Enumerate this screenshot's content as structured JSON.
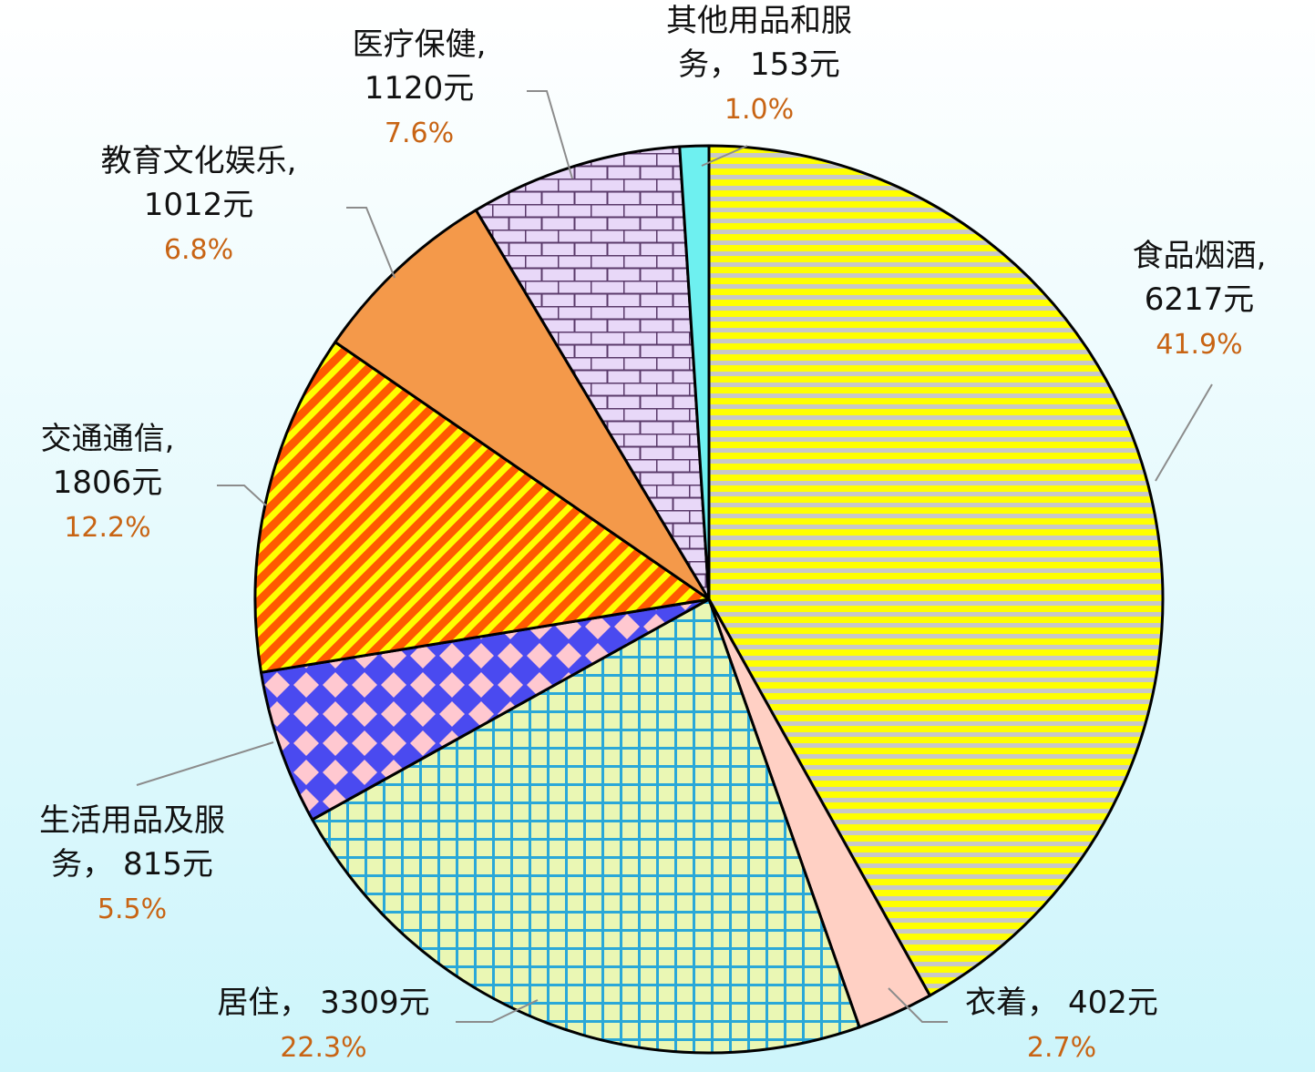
{
  "chart_data": {
    "type": "pie",
    "unit": "元",
    "slices": [
      {
        "name": "食品烟酒",
        "value": 6217,
        "percent": "41.9%",
        "label_line1": "食品烟酒,",
        "label_line2": "6217元",
        "fill": "#ffff00",
        "pattern": "horizontal-lines",
        "pattern_color": "#c8c8c8"
      },
      {
        "name": "衣着",
        "value": 402,
        "percent": "2.7%",
        "label_line1": "衣着， 402元",
        "label_line2": "",
        "fill": "#ffd0c4",
        "pattern": "solid",
        "pattern_color": "#ffd0c4"
      },
      {
        "name": "居住",
        "value": 3309,
        "percent": "22.3%",
        "label_line1": "居住， 3309元",
        "label_line2": "",
        "fill": "#eaf7b4",
        "pattern": "grid",
        "pattern_color": "#2aa8d8"
      },
      {
        "name": "生活用品及服务",
        "value": 815,
        "percent": "5.5%",
        "label_line1": "生活用品及服",
        "label_line2": "务， 815元",
        "fill": "#4a4af0",
        "pattern": "diamonds",
        "pattern_color": "#ffc8d0"
      },
      {
        "name": "交通通信",
        "value": 1806,
        "percent": "12.2%",
        "label_line1": "交通通信,",
        "label_line2": "1806元",
        "fill": "#ff5a00",
        "pattern": "diagonal-stripes",
        "pattern_color": "#ffff00"
      },
      {
        "name": "教育文化娱乐",
        "value": 1012,
        "percent": "6.8%",
        "label_line1": "教育文化娱乐,",
        "label_line2": "1012元",
        "fill": "#f4994a",
        "pattern": "solid",
        "pattern_color": "#f4994a"
      },
      {
        "name": "医疗保健",
        "value": 1120,
        "percent": "7.6%",
        "label_line1": "医疗保健,",
        "label_line2": "1120元",
        "fill": "#e8d8f8",
        "pattern": "bricks",
        "pattern_color": "#5a3a6a"
      },
      {
        "name": "其他用品和服务",
        "value": 153,
        "percent": "1.0%",
        "label_line1": "其他用品和服",
        "label_line2": "务， 153元",
        "fill": "#6ef0f0",
        "pattern": "solid",
        "pattern_color": "#6ef0f0"
      }
    ],
    "start_angle_deg": 0,
    "direction": "clockwise",
    "legend": "none",
    "data_labels": "outside-with-leader-lines",
    "background": [
      "#ffffff",
      "#cdf5fb"
    ],
    "percent_label_color": "#c86414"
  }
}
